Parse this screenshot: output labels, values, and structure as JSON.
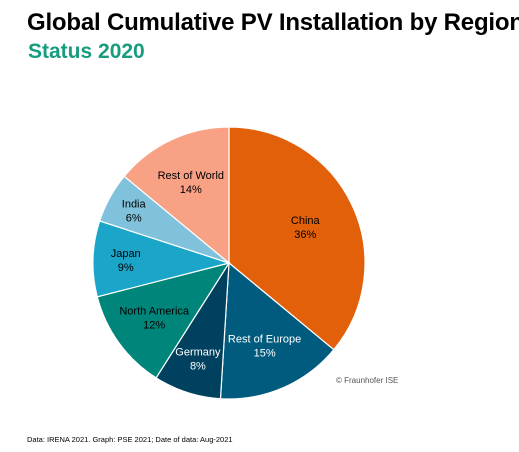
{
  "header": {
    "title": "Global Cumulative PV Installation by Region",
    "subtitle": "Status 2020"
  },
  "chart_data": {
    "type": "pie",
    "slices": [
      {
        "label": "China",
        "value": 36,
        "display": "36%",
        "color": "#e2600a",
        "text_color": "#000000"
      },
      {
        "label": "Rest of Europe",
        "value": 15,
        "display": "15%",
        "color": "#005b7f",
        "text_color": "#ffffff"
      },
      {
        "label": "Germany",
        "value": 8,
        "display": "8%",
        "color": "#00415f",
        "text_color": "#ffffff"
      },
      {
        "label": "North America",
        "value": 12,
        "display": "12%",
        "color": "#00857a",
        "text_color": "#000000"
      },
      {
        "label": "Japan",
        "value": 9,
        "display": "9%",
        "color": "#1ba6c9",
        "text_color": "#000000"
      },
      {
        "label": "India",
        "value": 6,
        "display": "6%",
        "color": "#80c2dc",
        "text_color": "#000000"
      },
      {
        "label": "Rest of World",
        "value": 14,
        "display": "14%",
        "color": "#f9a184",
        "text_color": "#000000"
      }
    ],
    "copyright": "© Fraunhofer ISE"
  },
  "footer": {
    "source": "Data: IRENA 2021. Graph: PSE 2021; Date of data: Aug-2021"
  }
}
